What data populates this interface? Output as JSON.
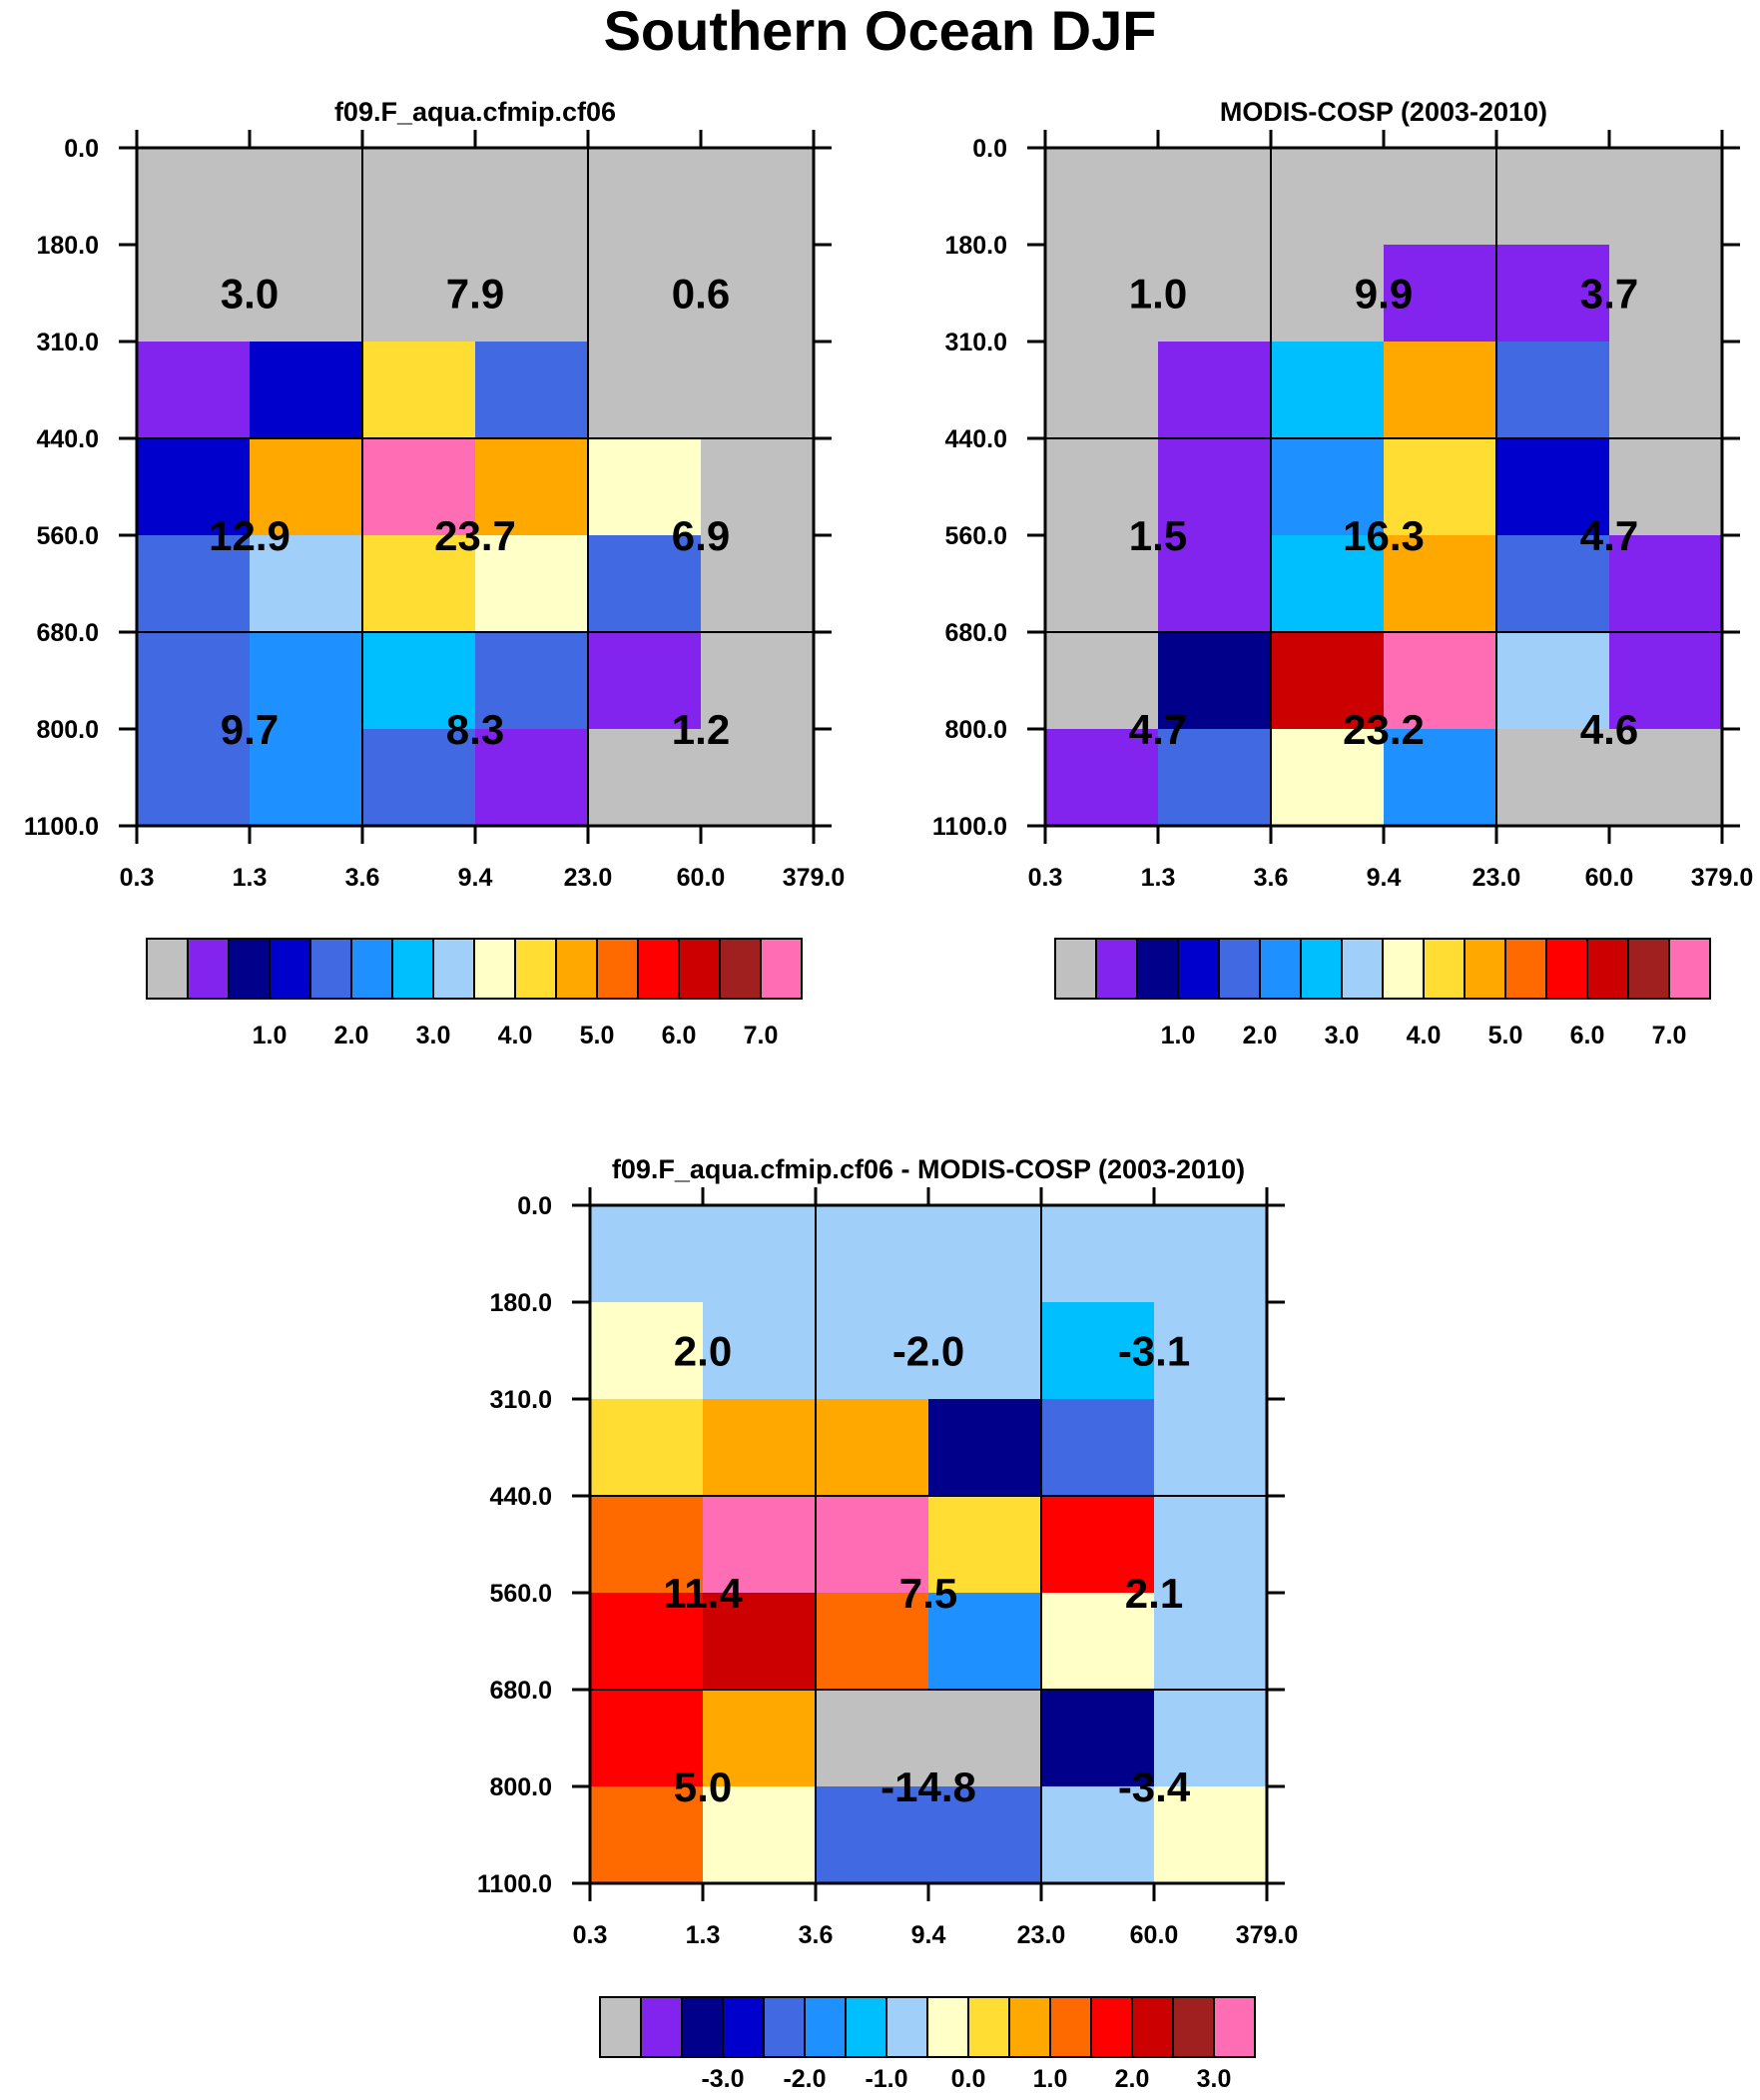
{
  "title": "Southern Ocean DJF",
  "chart_data": [
    {
      "type": "heatmap",
      "title": "f09.F_aqua.cfmip.cf06",
      "x_ticks": [
        "0.3",
        "1.3",
        "3.6",
        "9.4",
        "23.0",
        "60.0",
        "379.0"
      ],
      "y_ticks": [
        "0.0",
        "180.0",
        "310.0",
        "440.0",
        "560.0",
        "680.0",
        "800.0",
        "1100.0"
      ],
      "cells": [
        [
          0,
          0,
          0,
          0,
          0,
          0
        ],
        [
          0,
          0,
          0,
          0,
          0,
          0
        ],
        [
          1,
          3,
          9,
          4,
          0,
          0
        ],
        [
          3,
          10,
          15,
          10,
          8,
          0
        ],
        [
          4,
          7,
          9,
          8,
          4,
          0
        ],
        [
          4,
          5,
          6,
          4,
          1,
          0
        ],
        [
          4,
          5,
          4,
          1,
          0,
          0
        ]
      ],
      "box_labels": [
        "3.0",
        "7.9",
        "0.6",
        "12.9",
        "23.7",
        "6.9",
        "9.7",
        "8.3",
        "1.2"
      ],
      "colorbar_labels": [
        "1.0",
        "2.0",
        "3.0",
        "4.0",
        "5.0",
        "6.0",
        "7.0"
      ]
    },
    {
      "type": "heatmap",
      "title": "MODIS-COSP (2003-2010)",
      "x_ticks": [
        "0.3",
        "1.3",
        "3.6",
        "9.4",
        "23.0",
        "60.0",
        "379.0"
      ],
      "y_ticks": [
        "0.0",
        "180.0",
        "310.0",
        "440.0",
        "560.0",
        "680.0",
        "800.0",
        "1100.0"
      ],
      "cells": [
        [
          0,
          0,
          0,
          0,
          0,
          0
        ],
        [
          0,
          0,
          0,
          1,
          1,
          0
        ],
        [
          0,
          1,
          6,
          10,
          4,
          0
        ],
        [
          0,
          1,
          5,
          9,
          3,
          0
        ],
        [
          0,
          1,
          6,
          10,
          4,
          1
        ],
        [
          0,
          2,
          13,
          15,
          7,
          1
        ],
        [
          1,
          4,
          8,
          5,
          0,
          0
        ]
      ],
      "box_labels": [
        "1.0",
        "9.9",
        "3.7",
        "1.5",
        "16.3",
        "4.7",
        "4.7",
        "23.2",
        "4.6"
      ],
      "colorbar_labels": [
        "1.0",
        "2.0",
        "3.0",
        "4.0",
        "5.0",
        "6.0",
        "7.0"
      ]
    },
    {
      "type": "heatmap",
      "title": "f09.F_aqua.cfmip.cf06 - MODIS-COSP (2003-2010)",
      "x_ticks": [
        "0.3",
        "1.3",
        "3.6",
        "9.4",
        "23.0",
        "60.0",
        "379.0"
      ],
      "y_ticks": [
        "0.0",
        "180.0",
        "310.0",
        "440.0",
        "560.0",
        "680.0",
        "800.0",
        "1100.0"
      ],
      "cells": [
        [
          7,
          7,
          7,
          7,
          7,
          7
        ],
        [
          8,
          7,
          7,
          7,
          6,
          7
        ],
        [
          9,
          10,
          10,
          2,
          4,
          7
        ],
        [
          11,
          15,
          15,
          9,
          12,
          7
        ],
        [
          12,
          13,
          11,
          5,
          8,
          7
        ],
        [
          12,
          10,
          0,
          0,
          2,
          7
        ],
        [
          11,
          8,
          4,
          4,
          7,
          8
        ]
      ],
      "box_labels": [
        "2.0",
        "-2.0",
        "-3.1",
        "11.4",
        "7.5",
        "2.1",
        "5.0",
        "-14.8",
        "-3.4"
      ],
      "colorbar_labels": [
        "-3.0",
        "-2.0",
        "-1.0",
        "0.0",
        "1.0",
        "2.0",
        "3.0"
      ]
    }
  ],
  "palette": [
    "#c0c0c0",
    "#8224ee",
    "#00008b",
    "#0000cd",
    "#4169e1",
    "#1e90ff",
    "#00bfff",
    "#a0d0fa",
    "#ffffc8",
    "#ffdd33",
    "#ffa800",
    "#ff6a00",
    "#ff0000",
    "#cc0000",
    "#a02020",
    "#ff6eb4"
  ]
}
